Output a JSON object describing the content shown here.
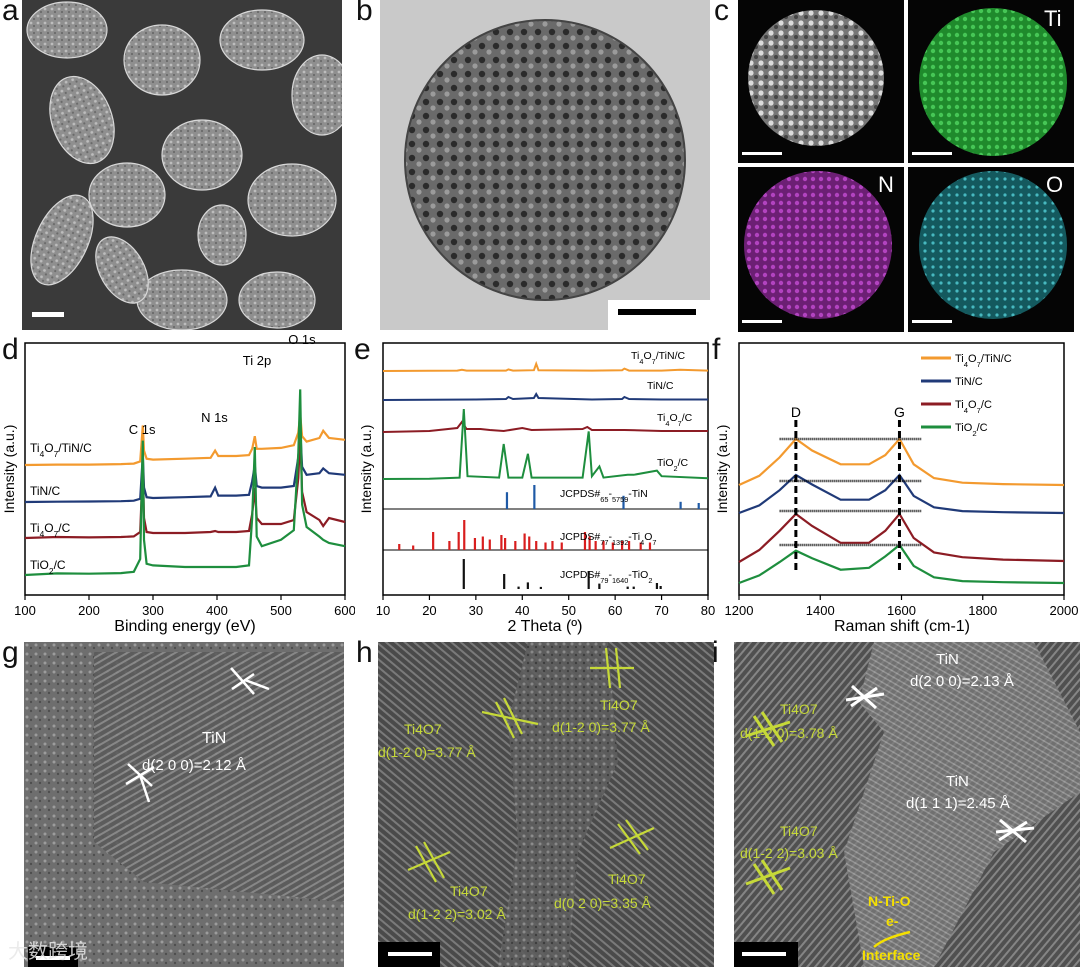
{
  "panel_letters": {
    "a": "a",
    "b": "b",
    "c": "c",
    "d": "d",
    "e": "e",
    "f": "f",
    "g": "g",
    "h": "h",
    "i": "i"
  },
  "colors": {
    "orange": "#f39a2f",
    "navy": "#203a78",
    "darkred": "#8c1c24",
    "green": "#1e8e3e",
    "blue_ref": "#1f5aa6",
    "red_ref": "#d81e1e",
    "black_ref": "#111111"
  },
  "panel_c": {
    "labels": [
      "Ti",
      "N",
      "O"
    ]
  },
  "panel_d": {
    "xlabel": "Binding energy (eV)",
    "ylabel": "Intensity (a.u.)",
    "xticks": [
      "100",
      "200",
      "300",
      "400",
      "500",
      "600"
    ],
    "peak_labels": [
      "C 1s",
      "N 1s",
      "Ti 2p",
      "O 1s"
    ],
    "series_labels": [
      "Ti4O7/TiN/C",
      "TiN/C",
      "Ti4O7/C",
      "TiO2/C"
    ]
  },
  "panel_e": {
    "xlabel": "2 Theta (º)",
    "ylabel": "Intensity (a.u.)",
    "xticks": [
      "10",
      "20",
      "30",
      "40",
      "50",
      "60",
      "70",
      "80"
    ],
    "series_labels": [
      "Ti4O7/TiN/C",
      "TiN/C",
      "Ti4O7/C",
      "TiO2/C"
    ],
    "ref_labels": [
      "JCPDS#65-5759-TiN",
      "JCPDS#77-1392-Ti4O7",
      "JCPDS#79-1640-TiO2"
    ]
  },
  "panel_f": {
    "xlabel": "Raman shift (cm-1)",
    "ylabel": "Intensity (a.u.)",
    "xticks": [
      "1200",
      "1400",
      "1600",
      "1800",
      "2000"
    ],
    "band_labels": [
      "D",
      "G"
    ],
    "legend": [
      "Ti4O7/TiN/C",
      "TiN/C",
      "Ti4O7/C",
      "TiO2/C"
    ]
  },
  "panel_g": {
    "labels": [
      "TiN",
      "d(2 0 0)=2.12 Å"
    ]
  },
  "panel_h": {
    "labels": [
      "Ti4O7",
      "d(1-2 0)=3.77 Å",
      "Ti4O7",
      "d(1-2 0)=3.77 Å",
      "Ti4O7",
      "d(1-2 2)=3.02 Å",
      "Ti4O7",
      "d(0 2 0)=3.35 Å"
    ]
  },
  "panel_i": {
    "labels": [
      "TiN",
      "d(2 0 0)=2.13 Å",
      "Ti4O7",
      "d(1-2 0)=3.78 Å",
      "TiN",
      "d(1 1 1)=2.45 Å",
      "Ti4O7",
      "d(1-2 2)=3.03 Å",
      "N-Ti-O",
      "e-",
      "Interface"
    ]
  },
  "watermark": "大数跨境",
  "chart_data": [
    {
      "type": "line",
      "title": "",
      "xlabel": "Binding energy (eV)",
      "ylabel": "Intensity (a.u.)",
      "xlim": [
        100,
        600
      ],
      "peaks_eV": {
        "C 1s": 284.8,
        "N 1s": 397,
        "Ti 2p": 458.8,
        "O 1s": 530.5
      },
      "series": [
        {
          "name": "Ti4O7/TiN/C",
          "color": "#f39a2f",
          "offset": 3,
          "x": [
            100,
            150,
            200,
            250,
            270,
            280,
            284,
            286,
            290,
            300,
            350,
            390,
            397,
            402,
            430,
            450,
            455,
            459,
            462,
            470,
            500,
            520,
            527,
            530,
            533,
            540,
            560,
            566,
            575,
            600
          ],
          "y": [
            0,
            0.02,
            0.02,
            0.05,
            0.08,
            0.2,
            2.2,
            0.8,
            0.35,
            0.3,
            0.35,
            0.4,
            0.8,
            0.5,
            0.5,
            0.55,
            0.9,
            1.6,
            0.9,
            0.9,
            0.95,
            1.1,
            1.8,
            2.8,
            1.6,
            1.3,
            1.5,
            1.9,
            1.5,
            1.4
          ]
        },
        {
          "name": "TiN/C",
          "color": "#203a78",
          "offset": 2,
          "x": [
            100,
            150,
            200,
            250,
            270,
            280,
            284,
            286,
            290,
            300,
            350,
            390,
            397,
            402,
            430,
            450,
            455,
            459,
            462,
            470,
            500,
            520,
            527,
            530,
            533,
            540,
            560,
            566,
            575,
            600
          ],
          "y": [
            0,
            0.02,
            0.03,
            0.05,
            0.08,
            0.2,
            2.9,
            0.9,
            0.3,
            0.25,
            0.3,
            0.35,
            0.9,
            0.4,
            0.4,
            0.45,
            1.3,
            2.3,
            1.0,
            0.9,
            0.9,
            1.0,
            2.8,
            4.6,
            2.2,
            1.7,
            1.8,
            2.1,
            1.8,
            1.7
          ]
        },
        {
          "name": "Ti4O7/C",
          "color": "#8c1c24",
          "offset": 1,
          "x": [
            100,
            150,
            200,
            250,
            270,
            280,
            284,
            286,
            290,
            300,
            350,
            390,
            397,
            402,
            430,
            450,
            455,
            459,
            462,
            470,
            500,
            520,
            527,
            530,
            533,
            540,
            560,
            566,
            575,
            600
          ],
          "y": [
            0,
            0.05,
            0.03,
            0.05,
            0.08,
            0.3,
            3.6,
            1.0,
            0.3,
            0.25,
            0.25,
            0.3,
            0.35,
            0.3,
            0.3,
            0.35,
            1.2,
            2.5,
            1.0,
            0.7,
            0.7,
            0.9,
            3.0,
            5.2,
            2.3,
            1.3,
            0.9,
            0.6,
            1.0,
            0.8
          ]
        },
        {
          "name": "TiO2/C",
          "color": "#1e8e3e",
          "offset": 0,
          "x": [
            100,
            150,
            200,
            250,
            270,
            280,
            284,
            286,
            290,
            300,
            350,
            390,
            397,
            402,
            430,
            450,
            455,
            459,
            462,
            470,
            500,
            520,
            527,
            530,
            533,
            540,
            560,
            566,
            575,
            600
          ],
          "y": [
            0,
            0.05,
            0.04,
            0.06,
            0.1,
            0.5,
            4.2,
            1.1,
            0.35,
            0.3,
            0.25,
            0.25,
            0.25,
            0.25,
            0.25,
            0.3,
            1.8,
            4.0,
            1.2,
            0.9,
            1.1,
            1.4,
            3.8,
            5.8,
            2.2,
            1.5,
            1.2,
            1.1,
            1.0,
            0.9
          ]
        }
      ]
    },
    {
      "type": "line",
      "title": "",
      "xlabel": "2 Theta (º)",
      "ylabel": "Intensity (a.u.)",
      "xlim": [
        10,
        80
      ],
      "series": [
        {
          "name": "Ti4O7/TiN/C",
          "color": "#f39a2f",
          "offset": 5,
          "x": [
            10,
            20,
            26,
            27,
            28,
            36.5,
            37,
            38,
            42.5,
            43,
            43.5,
            55,
            61.5,
            62,
            63,
            70,
            74,
            80
          ],
          "y": [
            0,
            0.02,
            0.05,
            0.15,
            0.05,
            0.05,
            0.2,
            0.05,
            0.1,
            0.9,
            0.1,
            0.05,
            0.1,
            0.3,
            0.05,
            0.05,
            0.15,
            0.05
          ]
        },
        {
          "name": "TiN/C",
          "color": "#203a78",
          "offset": 4,
          "x": [
            10,
            20,
            30,
            36.5,
            37,
            38,
            42.5,
            43,
            43.5,
            55,
            61.5,
            62,
            63,
            70,
            80
          ],
          "y": [
            0,
            0.02,
            0.05,
            0.1,
            0.3,
            0.1,
            0.2,
            0.6,
            0.2,
            0.05,
            0.1,
            0.3,
            0.1,
            0.05,
            0.05
          ]
        },
        {
          "name": "Ti4O7/C",
          "color": "#8c1c24",
          "offset": 3,
          "x": [
            10,
            20,
            26,
            27,
            28,
            31,
            33,
            36,
            40,
            42,
            53,
            54,
            55,
            62,
            70,
            80
          ],
          "y": [
            0,
            0.1,
            0.4,
            1.0,
            0.3,
            0.3,
            0.2,
            0.1,
            0.4,
            0.2,
            0.3,
            0.5,
            0.2,
            0.2,
            0.1,
            0.1
          ]
        },
        {
          "name": "TiO2/C",
          "color": "#1e8e3e",
          "offset": 0,
          "x": [
            10,
            20,
            26.5,
            27.4,
            28.2,
            35,
            36,
            37,
            40,
            41.2,
            42,
            43,
            53,
            54.3,
            55,
            56.6,
            57.5,
            62.7,
            64,
            69,
            70,
            80
          ],
          "y": [
            0,
            0.02,
            0.1,
            5.0,
            0.2,
            0.1,
            2.5,
            0.1,
            0.1,
            1.8,
            0.1,
            0.1,
            0.1,
            3.4,
            0.2,
            0.9,
            0.1,
            0.3,
            0.3,
            0.6,
            0.2,
            0.05
          ]
        }
      ],
      "references": [
        {
          "name": "JCPDS#65-5759-TiN",
          "color": "#1f5aa6",
          "x": [
            36.7,
            42.6,
            61.8,
            74.1,
            78.0
          ],
          "y": [
            0.7,
            1.0,
            0.55,
            0.3,
            0.25
          ]
        },
        {
          "name": "JCPDS#77-1392-Ti4O7",
          "color": "#d81e1e",
          "x": [
            13.5,
            16.5,
            20.8,
            24.3,
            26.3,
            27.5,
            29.8,
            31.5,
            33.0,
            35.5,
            36.3,
            38.5,
            40.5,
            41.5,
            43.0,
            45.0,
            46.5,
            48.5,
            53.5,
            54.5,
            55.8,
            57.5,
            59.5,
            61.5,
            63.0,
            65.5,
            67.5
          ],
          "y": [
            0.2,
            0.15,
            0.6,
            0.3,
            0.6,
            1.0,
            0.4,
            0.45,
            0.35,
            0.5,
            0.4,
            0.3,
            0.55,
            0.45,
            0.3,
            0.25,
            0.3,
            0.25,
            0.6,
            0.45,
            0.3,
            0.3,
            0.25,
            0.3,
            0.3,
            0.25,
            0.25
          ]
        },
        {
          "name": "JCPDS#79-1640-TiO2",
          "color": "#111111",
          "x": [
            27.4,
            36.1,
            39.2,
            41.2,
            44.0,
            54.3,
            56.6,
            62.7,
            64.0,
            69.0,
            69.8
          ],
          "y": [
            1.0,
            0.5,
            0.08,
            0.22,
            0.07,
            0.6,
            0.18,
            0.08,
            0.08,
            0.2,
            0.1
          ]
        }
      ]
    },
    {
      "type": "line",
      "title": "",
      "xlabel": "Raman shift (cm-1)",
      "ylabel": "Intensity (a.u.)",
      "xlim": [
        1200,
        2000
      ],
      "bands_cm-1": {
        "D": 1340,
        "G": 1595
      },
      "series": [
        {
          "name": "Ti4O7/TiN/C",
          "color": "#f39a2f",
          "offset": 3,
          "x": [
            1200,
            1250,
            1300,
            1340,
            1380,
            1450,
            1520,
            1560,
            1595,
            1630,
            1680,
            1750,
            1850,
            2000
          ],
          "y": [
            0,
            0.2,
            0.6,
            1.0,
            0.75,
            0.45,
            0.45,
            0.65,
            1.0,
            0.45,
            0.15,
            0.05,
            0.02,
            0
          ]
        },
        {
          "name": "TiN/C",
          "color": "#203a78",
          "offset": 2,
          "x": [
            1200,
            1250,
            1300,
            1340,
            1380,
            1450,
            1520,
            1560,
            1595,
            1630,
            1680,
            1750,
            1850,
            2000
          ],
          "y": [
            0,
            0.2,
            0.6,
            1.0,
            0.75,
            0.35,
            0.35,
            0.6,
            1.0,
            0.45,
            0.15,
            0.05,
            0.02,
            0
          ]
        },
        {
          "name": "Ti4O7/C",
          "color": "#8c1c24",
          "offset": 1,
          "x": [
            1200,
            1250,
            1300,
            1340,
            1380,
            1450,
            1520,
            1560,
            1595,
            1630,
            1680,
            1750,
            1850,
            2000
          ],
          "y": [
            0,
            0.25,
            0.65,
            1.0,
            0.75,
            0.4,
            0.4,
            0.65,
            1.0,
            0.5,
            0.2,
            0.1,
            0.05,
            0.02
          ]
        },
        {
          "name": "TiO2/C",
          "color": "#1e8e3e",
          "offset": 0,
          "x": [
            1200,
            1250,
            1300,
            1340,
            1380,
            1450,
            1520,
            1560,
            1595,
            1630,
            1680,
            1750,
            1850,
            2000
          ],
          "y": [
            0,
            0.2,
            0.55,
            0.85,
            0.65,
            0.35,
            0.4,
            0.7,
            1.0,
            0.45,
            0.15,
            0.05,
            0.02,
            0
          ]
        }
      ]
    }
  ]
}
